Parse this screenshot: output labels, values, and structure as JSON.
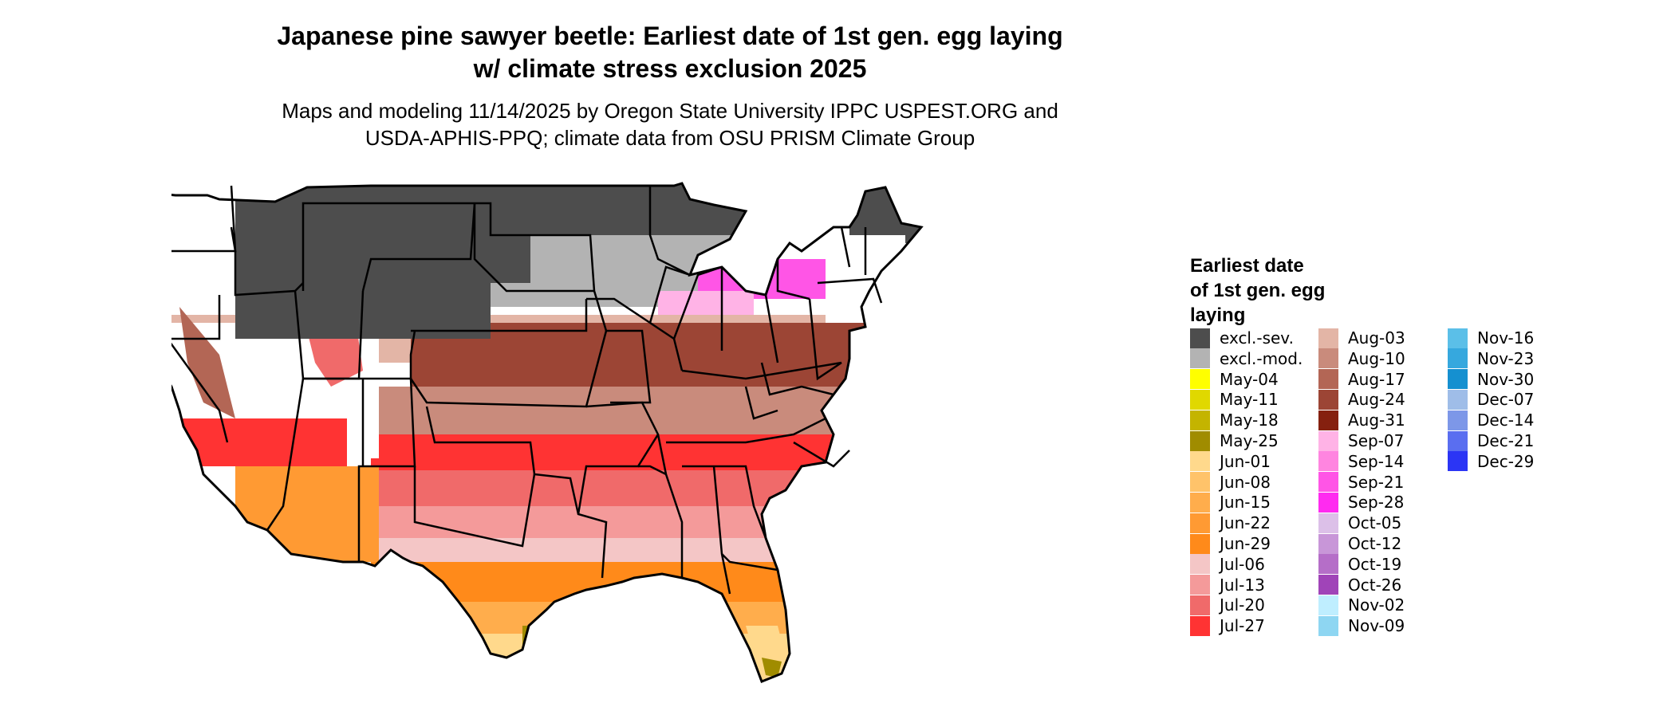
{
  "title": {
    "line1": "Japanese pine sawyer beetle: Earliest date of 1st gen. egg laying",
    "line2": "w/ climate stress exclusion 2025"
  },
  "subtitle": {
    "line1": "Maps and modeling 11/14/2025 by Oregon State University IPPC USPEST.ORG and",
    "line2": "USDA-APHIS-PPQ; climate data from OSU PRISM Climate Group"
  },
  "legend": {
    "title_line1": "Earliest date",
    "title_line2": "of 1st gen. egg",
    "title_line3": "laying",
    "columns": [
      [
        {
          "label": "excl.-sev.",
          "color": "#4d4d4d"
        },
        {
          "label": "excl.-mod.",
          "color": "#b3b3b3"
        },
        {
          "label": "May-04",
          "color": "#ffff00"
        },
        {
          "label": "May-11",
          "color": "#e0d800"
        },
        {
          "label": "May-18",
          "color": "#c4b400"
        },
        {
          "label": "May-25",
          "color": "#a08c00"
        },
        {
          "label": "Jun-01",
          "color": "#ffd98c"
        },
        {
          "label": "Jun-08",
          "color": "#ffc36a"
        },
        {
          "label": "Jun-15",
          "color": "#ffad4c"
        },
        {
          "label": "Jun-22",
          "color": "#ff9a33"
        },
        {
          "label": "Jun-29",
          "color": "#ff8a1a"
        },
        {
          "label": "Jul-06",
          "color": "#f4c6c6"
        },
        {
          "label": "Jul-13",
          "color": "#f49a9a"
        },
        {
          "label": "Jul-20",
          "color": "#f06a6a"
        },
        {
          "label": "Jul-27",
          "color": "#ff3333"
        }
      ],
      [
        {
          "label": "Aug-03",
          "color": "#e3b5a6"
        },
        {
          "label": "Aug-10",
          "color": "#c98b7c"
        },
        {
          "label": "Aug-17",
          "color": "#b36655"
        },
        {
          "label": "Aug-24",
          "color": "#9c4535"
        },
        {
          "label": "Aug-31",
          "color": "#85200f"
        },
        {
          "label": "Sep-07",
          "color": "#ffb3e6"
        },
        {
          "label": "Sep-14",
          "color": "#ff85e0"
        },
        {
          "label": "Sep-21",
          "color": "#ff55e6"
        },
        {
          "label": "Sep-28",
          "color": "#ff2bf0"
        },
        {
          "label": "Oct-05",
          "color": "#dcc0e8"
        },
        {
          "label": "Oct-12",
          "color": "#c896d8"
        },
        {
          "label": "Oct-19",
          "color": "#b56ec8"
        },
        {
          "label": "Oct-26",
          "color": "#a044b8"
        },
        {
          "label": "Nov-02",
          "color": "#bfeeff"
        },
        {
          "label": "Nov-09",
          "color": "#8ed6f2"
        }
      ],
      [
        {
          "label": "Nov-16",
          "color": "#5bbfe8"
        },
        {
          "label": "Nov-23",
          "color": "#36a8de"
        },
        {
          "label": "Nov-30",
          "color": "#1590d0"
        },
        {
          "label": "Dec-07",
          "color": "#9fbde8"
        },
        {
          "label": "Dec-14",
          "color": "#7d97e8"
        },
        {
          "label": "Dec-21",
          "color": "#5a6ef0"
        },
        {
          "label": "Dec-29",
          "color": "#2b35f5"
        }
      ]
    ]
  },
  "map_colors": {
    "severe": "#4d4d4d",
    "moderate": "#b3b3b3",
    "border": "#000000"
  }
}
